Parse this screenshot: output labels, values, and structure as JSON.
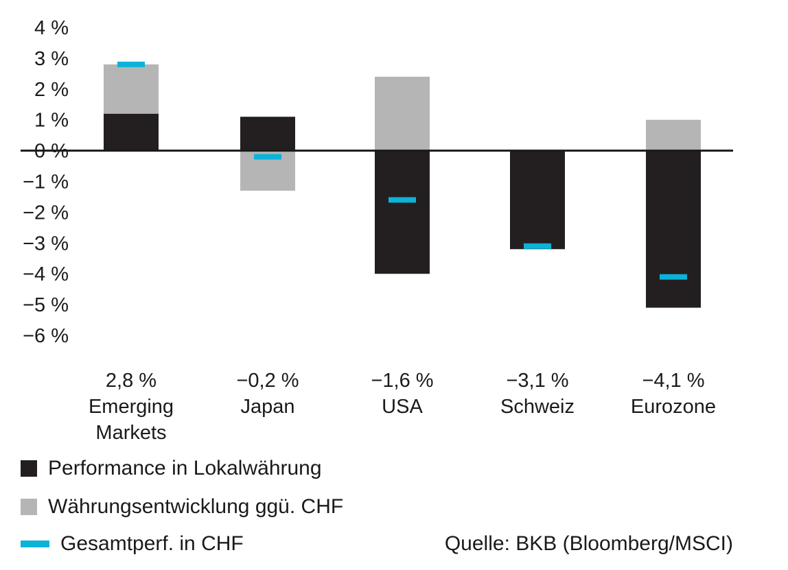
{
  "chart_data": {
    "type": "bar",
    "categories": [
      "Emerging Markets",
      "Japan",
      "USA",
      "Schweiz",
      "Eurozone"
    ],
    "category_totals": [
      "2,8 %",
      "−0,2 %",
      "−1,6 %",
      "−3,1 %",
      "−4,1 %"
    ],
    "category_labels": [
      [
        "Emerging",
        "Markets"
      ],
      [
        "Japan"
      ],
      [
        "USA"
      ],
      [
        "Schweiz"
      ],
      [
        "Eurozone"
      ]
    ],
    "series": [
      {
        "name": "Performance in Lokalwährung",
        "values": [
          1.2,
          1.1,
          -4.0,
          -3.2,
          -5.1
        ],
        "color": "#231f20"
      },
      {
        "name": "Währungsentwicklung ggü. CHF",
        "values": [
          1.6,
          -1.3,
          2.4,
          0.0,
          1.0
        ],
        "color": "#b5b5b6"
      },
      {
        "name": "Gesamtperf. in CHF",
        "values": [
          2.8,
          -0.2,
          -1.6,
          -3.1,
          -4.1
        ],
        "color": "#0bb3d9"
      }
    ],
    "yticks": [
      "4 %",
      "3 %",
      "2 %",
      "1 %",
      "0 %",
      "−1 %",
      "−2 %",
      "−3 %",
      "−4 %",
      "−5 %",
      "−6 %"
    ],
    "ylim": [
      -6,
      4
    ],
    "source": "Quelle: BKB (Bloomberg/MSCI)"
  }
}
